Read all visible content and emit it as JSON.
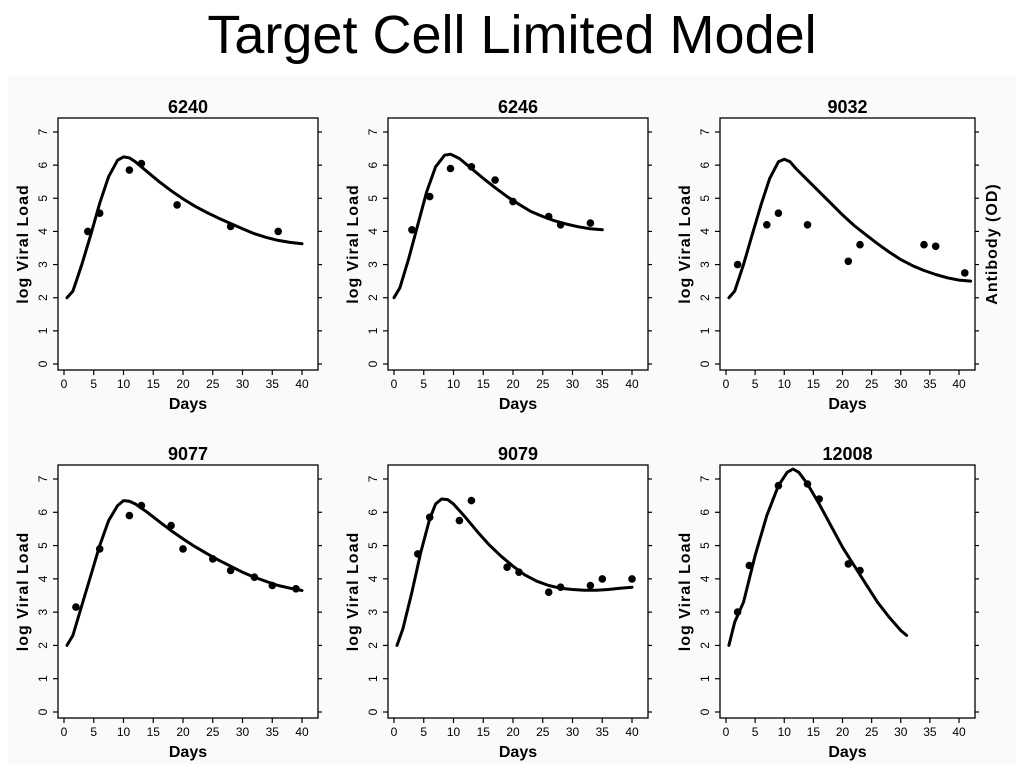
{
  "slide_title": "Target Cell Limited Model",
  "chart_data": [
    {
      "type": "scatter",
      "title": "6240",
      "xlabel": "Days",
      "ylabel": "log Viral Load",
      "y2label": "",
      "xlim": [
        0,
        40
      ],
      "ylim": [
        0,
        7
      ],
      "xticks": [
        0,
        5,
        10,
        15,
        20,
        25,
        30,
        35,
        40
      ],
      "yticks": [
        0,
        1,
        2,
        3,
        4,
        5,
        6,
        7
      ],
      "series": [
        {
          "kind": "points",
          "x": [
            4,
            6,
            11,
            13,
            19,
            28,
            36
          ],
          "y": [
            4.0,
            4.55,
            5.85,
            6.05,
            4.8,
            4.15,
            4.0
          ]
        },
        {
          "kind": "line",
          "x": [
            0.5,
            1.5,
            3,
            4.5,
            6,
            7.5,
            9,
            10,
            11,
            12,
            14,
            16,
            18,
            20,
            22,
            24,
            26,
            28,
            30,
            32,
            34,
            36,
            38,
            40
          ],
          "y": [
            2.0,
            2.2,
            3.0,
            3.9,
            4.85,
            5.65,
            6.15,
            6.25,
            6.22,
            6.1,
            5.8,
            5.5,
            5.23,
            4.98,
            4.76,
            4.57,
            4.4,
            4.24,
            4.08,
            3.93,
            3.82,
            3.73,
            3.67,
            3.63
          ]
        }
      ]
    },
    {
      "type": "scatter",
      "title": "6246",
      "xlabel": "Days",
      "ylabel": "log Viral Load",
      "y2label": "",
      "xlim": [
        0,
        40
      ],
      "ylim": [
        0,
        7
      ],
      "xticks": [
        0,
        5,
        10,
        15,
        20,
        25,
        30,
        35,
        40
      ],
      "yticks": [
        0,
        1,
        2,
        3,
        4,
        5,
        6,
        7
      ],
      "series": [
        {
          "kind": "points",
          "x": [
            3,
            6,
            9.5,
            13,
            17,
            20,
            26,
            28,
            33
          ],
          "y": [
            4.05,
            5.05,
            5.9,
            5.95,
            5.55,
            4.9,
            4.45,
            4.2,
            4.25
          ]
        },
        {
          "kind": "line",
          "x": [
            0,
            1,
            2.5,
            4,
            5.5,
            7,
            8.5,
            9.5,
            11,
            13,
            15,
            17,
            19,
            21,
            23,
            25,
            27,
            29,
            31,
            33,
            35
          ],
          "y": [
            2.0,
            2.3,
            3.2,
            4.2,
            5.2,
            5.95,
            6.3,
            6.33,
            6.2,
            5.9,
            5.6,
            5.32,
            5.05,
            4.82,
            4.6,
            4.45,
            4.32,
            4.22,
            4.14,
            4.08,
            4.05
          ]
        }
      ]
    },
    {
      "type": "scatter",
      "title": "9032",
      "xlabel": "Days",
      "ylabel": "log Viral Load",
      "y2label": "Antibody (OD)",
      "xlim": [
        0,
        40
      ],
      "ylim": [
        0,
        7
      ],
      "xticks": [
        0,
        5,
        10,
        15,
        20,
        25,
        30,
        35,
        40
      ],
      "yticks": [
        0,
        1,
        2,
        3,
        4,
        5,
        6,
        7
      ],
      "series": [
        {
          "kind": "points",
          "x": [
            2,
            7,
            9,
            14,
            21,
            23,
            34,
            36,
            41
          ],
          "y": [
            3.0,
            4.2,
            4.55,
            4.2,
            3.1,
            3.6,
            3.6,
            3.55,
            2.75
          ]
        },
        {
          "kind": "line",
          "x": [
            0.5,
            1.5,
            3,
            4.5,
            6,
            7.5,
            9,
            10,
            11,
            12,
            14,
            16,
            18,
            20,
            22,
            24,
            26,
            28,
            30,
            32,
            34,
            36,
            38,
            40,
            42
          ],
          "y": [
            2.0,
            2.2,
            3.0,
            3.9,
            4.8,
            5.6,
            6.1,
            6.18,
            6.1,
            5.9,
            5.55,
            5.2,
            4.85,
            4.5,
            4.18,
            3.9,
            3.63,
            3.38,
            3.15,
            2.97,
            2.82,
            2.7,
            2.6,
            2.53,
            2.5
          ]
        }
      ]
    },
    {
      "type": "scatter",
      "title": "9077",
      "xlabel": "Days",
      "ylabel": "log Viral Load",
      "y2label": "",
      "xlim": [
        0,
        40
      ],
      "ylim": [
        0,
        7
      ],
      "xticks": [
        0,
        5,
        10,
        15,
        20,
        25,
        30,
        35,
        40
      ],
      "yticks": [
        0,
        1,
        2,
        3,
        4,
        5,
        6,
        7
      ],
      "series": [
        {
          "kind": "points",
          "x": [
            2,
            6,
            11,
            13,
            18,
            20,
            25,
            28,
            32,
            35,
            39
          ],
          "y": [
            3.15,
            4.9,
            5.9,
            6.2,
            5.6,
            4.9,
            4.6,
            4.25,
            4.05,
            3.8,
            3.7
          ]
        },
        {
          "kind": "line",
          "x": [
            0.5,
            1.5,
            3,
            4.5,
            6,
            7.5,
            9,
            10,
            11,
            12,
            14,
            16,
            18,
            20,
            22,
            24,
            26,
            28,
            30,
            32,
            34,
            36,
            38,
            40
          ],
          "y": [
            2.0,
            2.3,
            3.2,
            4.1,
            5.0,
            5.75,
            6.2,
            6.35,
            6.33,
            6.25,
            6.0,
            5.72,
            5.45,
            5.2,
            4.97,
            4.76,
            4.56,
            4.38,
            4.2,
            4.05,
            3.92,
            3.8,
            3.72,
            3.65
          ]
        }
      ]
    },
    {
      "type": "scatter",
      "title": "9079",
      "xlabel": "Days",
      "ylabel": "log Viral Load",
      "y2label": "",
      "xlim": [
        0,
        40
      ],
      "ylim": [
        0,
        7
      ],
      "xticks": [
        0,
        5,
        10,
        15,
        20,
        25,
        30,
        35,
        40
      ],
      "yticks": [
        0,
        1,
        2,
        3,
        4,
        5,
        6,
        7
      ],
      "series": [
        {
          "kind": "points",
          "x": [
            4,
            6,
            11,
            13,
            19,
            21,
            26,
            28,
            33,
            35,
            40
          ],
          "y": [
            4.75,
            5.85,
            5.75,
            6.35,
            4.35,
            4.2,
            3.6,
            3.75,
            3.8,
            4.0,
            4.0
          ]
        },
        {
          "kind": "line",
          "x": [
            0.5,
            1.5,
            3,
            4.5,
            6,
            7,
            8,
            9,
            10,
            12,
            14,
            16,
            18,
            20,
            22,
            24,
            26,
            28,
            30,
            32,
            34,
            36,
            38,
            40
          ],
          "y": [
            2.0,
            2.5,
            3.6,
            4.8,
            5.8,
            6.25,
            6.4,
            6.38,
            6.25,
            5.85,
            5.42,
            5.02,
            4.68,
            4.38,
            4.12,
            3.93,
            3.8,
            3.72,
            3.68,
            3.66,
            3.66,
            3.68,
            3.72,
            3.75
          ]
        }
      ]
    },
    {
      "type": "scatter",
      "title": "12008",
      "xlabel": "Days",
      "ylabel": "log Viral Load",
      "y2label": "",
      "xlim": [
        0,
        40
      ],
      "ylim": [
        0,
        7
      ],
      "xticks": [
        0,
        5,
        10,
        15,
        20,
        25,
        30,
        35,
        40
      ],
      "yticks": [
        0,
        1,
        2,
        3,
        4,
        5,
        6,
        7
      ],
      "series": [
        {
          "kind": "points",
          "x": [
            2,
            4,
            9,
            14,
            16,
            21,
            23
          ],
          "y": [
            3.0,
            4.4,
            6.8,
            6.85,
            6.4,
            4.45,
            4.25
          ]
        },
        {
          "kind": "line",
          "x": [
            0.5,
            1.5,
            3,
            5,
            7,
            9,
            10.5,
            11.5,
            12.5,
            14,
            16,
            18,
            20,
            22,
            24,
            26,
            28,
            30,
            31
          ],
          "y": [
            2.0,
            2.7,
            3.3,
            4.7,
            5.9,
            6.8,
            7.2,
            7.3,
            7.2,
            6.85,
            6.25,
            5.6,
            4.95,
            4.4,
            3.85,
            3.3,
            2.85,
            2.45,
            2.3
          ]
        }
      ]
    }
  ]
}
